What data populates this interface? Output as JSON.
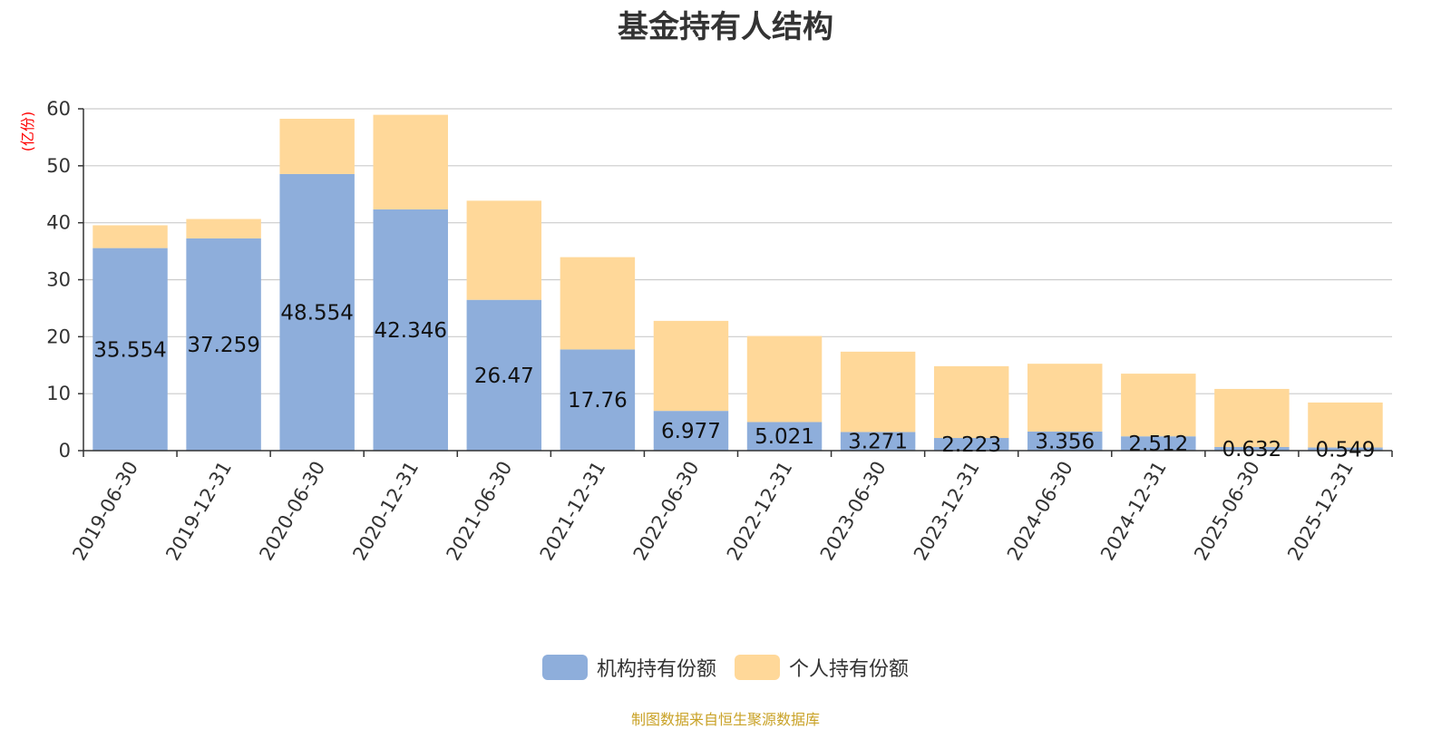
{
  "chart_data": {
    "type": "bar",
    "stacked": true,
    "title": "基金持有人结构",
    "ylabel": "(亿份)",
    "ylim": [
      0,
      60
    ],
    "yticks": [
      0,
      10,
      20,
      30,
      40,
      50,
      60
    ],
    "categories": [
      "2019-06-30",
      "2019-12-31",
      "2020-06-30",
      "2020-12-31",
      "2021-06-30",
      "2021-12-31",
      "2022-06-30",
      "2022-12-31",
      "2023-06-30",
      "2023-12-31",
      "2024-06-30",
      "2024-12-31",
      "2025-06-30",
      "2025-12-31"
    ],
    "series": [
      {
        "name": "机构持有份额",
        "color": "#8eaedb",
        "values": [
          35.554,
          37.259,
          48.554,
          42.346,
          26.47,
          17.76,
          6.977,
          5.021,
          3.271,
          2.223,
          3.356,
          2.512,
          0.632,
          0.549
        ],
        "labels": [
          "35.554",
          "37.259",
          "48.554",
          "42.346",
          "26.47",
          "17.76",
          "6.977",
          "5.021",
          "3.271",
          "2.223",
          "3.356",
          "2.512",
          "0.632",
          "0.549"
        ]
      },
      {
        "name": "个人持有份额",
        "color": "#ffd899",
        "values": [
          4.0,
          3.4,
          9.7,
          16.6,
          17.4,
          16.2,
          15.8,
          15.1,
          14.1,
          12.6,
          11.9,
          11.0,
          10.2,
          7.9
        ]
      }
    ],
    "grid": true,
    "legend_position": "bottom"
  },
  "footer": {
    "text": "制图数据来自恒生聚源数据库",
    "color": "#c9a227"
  },
  "colors": {
    "axis": "#333333",
    "grid": "#cccccc",
    "ylabel": "#ff0000"
  }
}
